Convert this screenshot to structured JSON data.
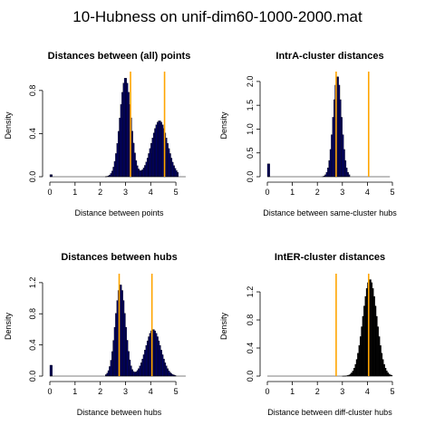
{
  "figure": {
    "title": "10-Hubness on unif-dim60-1000-2000.mat"
  },
  "colors": {
    "hist_fill_blue": "#000066",
    "hist_fill_black": "#000000",
    "reference_line": "#ffa500",
    "axis": "#000000",
    "background": "#ffffff"
  },
  "chart_data": [
    {
      "type": "bar",
      "title": "Distances between (all) points",
      "xlabel": "Distance between points",
      "ylabel": "Density",
      "xlim": [
        0,
        5.5
      ],
      "ylim": [
        0,
        0.95
      ],
      "xticks": [
        0,
        1,
        2,
        3,
        4,
        5
      ],
      "yticks": [
        0.0,
        0.4,
        0.8
      ],
      "bar_width": 0.05,
      "fill": "#000066",
      "vlines": [
        3.2,
        4.55
      ],
      "peaks": [
        {
          "center": 3.0,
          "width": 0.22,
          "height": 0.92
        },
        {
          "center": 4.35,
          "width": 0.32,
          "height": 0.52
        }
      ],
      "range": [
        2.2,
        5.1
      ],
      "spikes": [
        {
          "x": 0.05,
          "height": 0.02
        }
      ]
    },
    {
      "type": "bar",
      "title": "IntrA-cluster distances",
      "xlabel": "Distance between same-cluster hubs",
      "ylabel": "Density",
      "xlim": [
        0,
        5
      ],
      "ylim": [
        0,
        2.15
      ],
      "xticks": [
        0,
        1,
        2,
        3,
        4,
        5
      ],
      "yticks": [
        0.0,
        0.5,
        1.0,
        1.5,
        2.0
      ],
      "bar_width": 0.05,
      "fill": "#000066",
      "vlines": [
        2.75,
        4.05
      ],
      "peaks": [
        {
          "center": 2.8,
          "width": 0.17,
          "height": 2.12
        }
      ],
      "range": [
        2.2,
        3.3
      ],
      "spikes": [
        {
          "x": 0.05,
          "height": 0.27
        }
      ]
    },
    {
      "type": "bar",
      "title": "Distances between hubs",
      "xlabel": "Distance between hubs",
      "ylabel": "Density",
      "xlim": [
        0,
        5.5
      ],
      "ylim": [
        0,
        1.28
      ],
      "xticks": [
        0,
        1,
        2,
        3,
        4,
        5
      ],
      "yticks": [
        0.0,
        0.4,
        0.8,
        1.2
      ],
      "bar_width": 0.05,
      "fill": "#000066",
      "vlines": [
        2.75,
        4.05
      ],
      "peaks": [
        {
          "center": 2.8,
          "width": 0.2,
          "height": 1.18
        },
        {
          "center": 4.1,
          "width": 0.3,
          "height": 0.6
        }
      ],
      "range": [
        2.2,
        5.0
      ],
      "spikes": [
        {
          "x": 0.05,
          "height": 0.14
        }
      ]
    },
    {
      "type": "bar",
      "title": "IntER-cluster distances",
      "xlabel": "Distance between diff-cluster hubs",
      "ylabel": "Density",
      "xlim": [
        0,
        5
      ],
      "ylim": [
        0,
        1.42
      ],
      "xticks": [
        0,
        1,
        2,
        3,
        4,
        5
      ],
      "yticks": [
        0.0,
        0.4,
        0.8,
        1.2
      ],
      "bar_width": 0.05,
      "fill": "#000000",
      "vlines": [
        2.75,
        4.05
      ],
      "peaks": [
        {
          "center": 4.1,
          "width": 0.28,
          "height": 1.38
        }
      ],
      "range": [
        3.0,
        5.0
      ],
      "spikes": []
    }
  ]
}
